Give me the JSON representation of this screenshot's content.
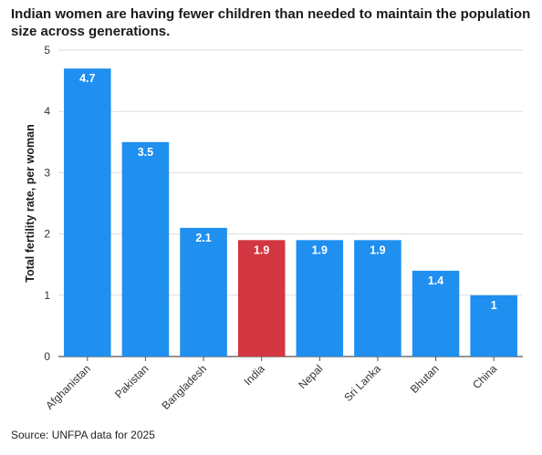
{
  "chart_data": {
    "type": "bar",
    "title": "Indian women are having fewer children than needed to maintain the population size across generations.",
    "ylabel": "Total fertility rate, per woman",
    "xlabel": "",
    "categories": [
      "Afghanistan",
      "Pakistan",
      "Bangladesh",
      "India",
      "Nepal",
      "Sri Lanka",
      "Bhutan",
      "China"
    ],
    "values": [
      4.7,
      3.5,
      2.1,
      1.9,
      1.9,
      1.9,
      1.4,
      1
    ],
    "data_labels": [
      "4.7",
      "3.5",
      "2.1",
      "1.9",
      "1.9",
      "1.9",
      "1.4",
      "1"
    ],
    "highlight_category": "India",
    "ylim": [
      0,
      5
    ],
    "yticks": [
      0,
      1,
      2,
      3,
      4,
      5
    ],
    "grid": true,
    "legend": "none",
    "colors": {
      "bar": "#1f8ff0",
      "highlight": "#d23640",
      "label_text": "#ffffff",
      "grid": "#dddddd",
      "axis": "#555555"
    }
  },
  "source": "Source: UNFPA data for 2025"
}
